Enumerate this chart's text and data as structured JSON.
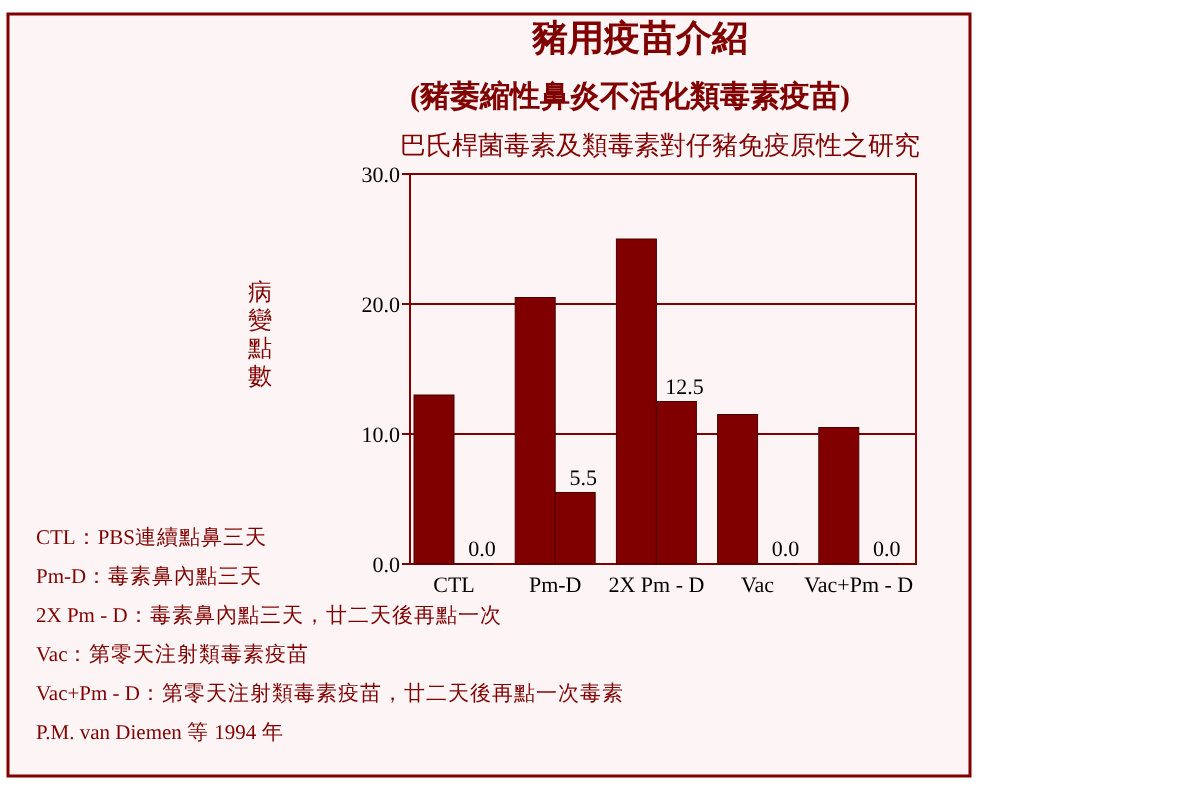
{
  "chart_data": {
    "type": "bar",
    "title": "豬用疫苗介紹",
    "subtitle": "(豬萎縮性鼻炎不活化類毒素疫苗)",
    "ylabel": "病變點數",
    "annotations": [
      "巴氏桿菌毒素及類毒素對仔豬免疫原性之研究",
      "CTL：PBS連續點鼻三天",
      "Pm-D：毒素鼻內點三天",
      "2X Pm - D：毒素鼻內點三天，廿二天後再點一次",
      "Vac：第零天注射類毒素疫苗",
      "Vac+Pm - D：第零天注射類毒素疫苗，廿二天後再點一次毒素",
      "P.M. van Diemen 等 1994 年"
    ],
    "categories": [
      "CTL",
      "Pm-D",
      "2X Pm - D",
      "Vac",
      "Vac+Pm - D"
    ],
    "series": [
      {
        "color": "#800000",
        "values": [
          13,
          20.5,
          25,
          11.5,
          10.5
        ]
      },
      {
        "color": "#800000",
        "values": [
          0,
          5.5,
          12.5,
          0,
          0
        ],
        "value_labels": [
          "0.0",
          "5.5",
          "12.5",
          "0.0",
          "0.0"
        ]
      }
    ],
    "ylim": [
      0,
      30
    ],
    "yticks": [
      {
        "value": 0,
        "label": "0.0"
      },
      {
        "value": 10,
        "label": "10.0"
      },
      {
        "value": 20,
        "label": "20.0"
      },
      {
        "value": 30,
        "label": "30.0"
      }
    ],
    "grid": "y"
  }
}
